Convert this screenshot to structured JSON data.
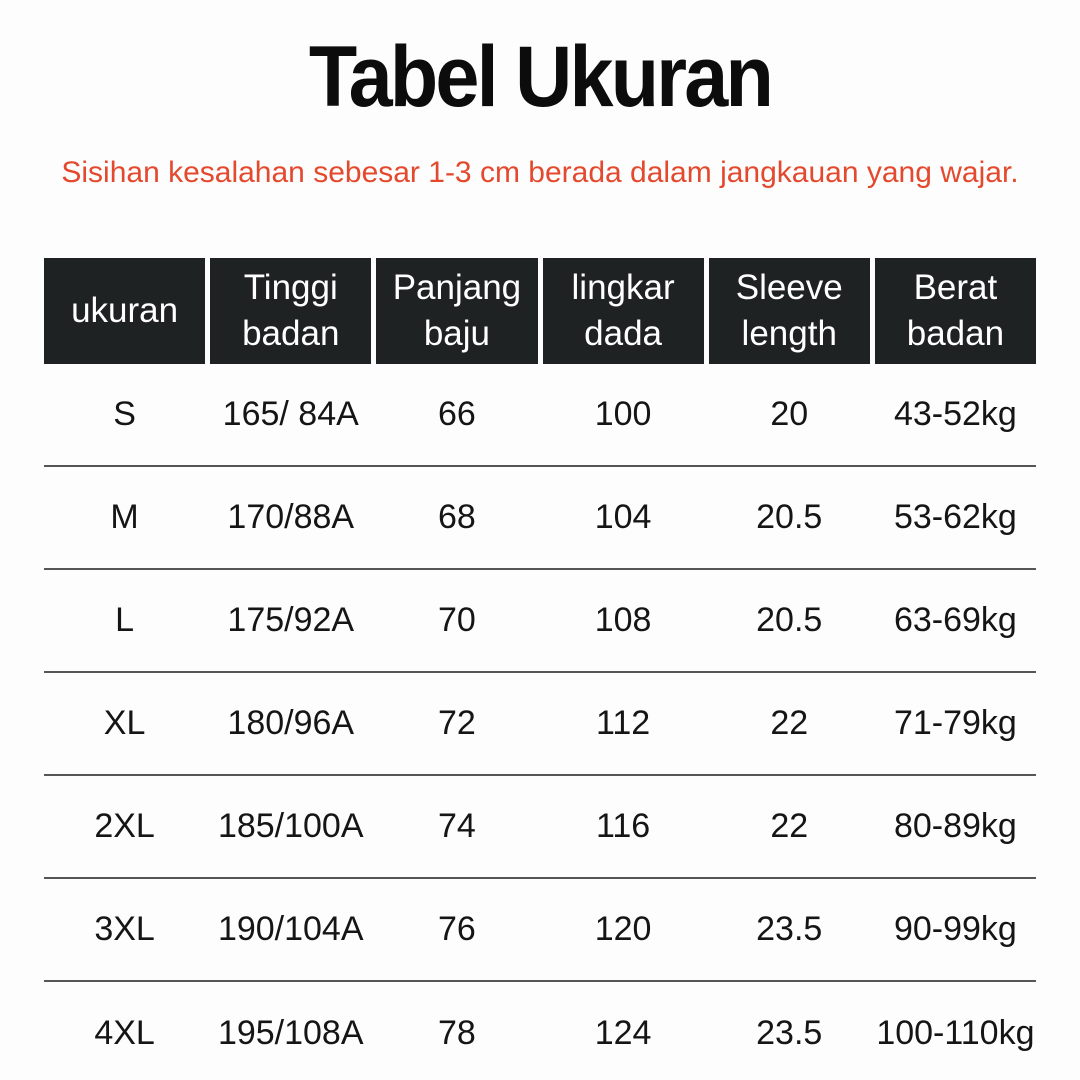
{
  "page": {
    "title": "Tabel Ukuran",
    "subtitle": "Sisihan kesalahan sebesar 1-3 cm berada dalam jangkauan yang wajar."
  },
  "colors": {
    "background": "#fdfdfd",
    "title_text": "#0c0c0c",
    "subtitle": "#e4492e",
    "header_bg": "#1f2223",
    "header_text": "#ffffff",
    "row_divider": "#565656",
    "body_text": "#151515"
  },
  "table": {
    "columns": [
      "ukuran",
      "Tinggi badan",
      "Panjang baju",
      "lingkar dada",
      "Sleeve length",
      "Berat badan"
    ],
    "rows": [
      [
        "S",
        "165/ 84A",
        "66",
        "100",
        "20",
        "43-52kg"
      ],
      [
        "M",
        "170/88A",
        "68",
        "104",
        "20.5",
        "53-62kg"
      ],
      [
        "L",
        "175/92A",
        "70",
        "108",
        "20.5",
        "63-69kg"
      ],
      [
        "XL",
        "180/96A",
        "72",
        "112",
        "22",
        "71-79kg"
      ],
      [
        "2XL",
        "185/100A",
        "74",
        "116",
        "22",
        "80-89kg"
      ],
      [
        "3XL",
        "190/104A",
        "76",
        "120",
        "23.5",
        "90-99kg"
      ],
      [
        "4XL",
        "195/108A",
        "78",
        "124",
        "23.5",
        "100-110kg"
      ]
    ]
  },
  "chart_data": {
    "type": "table",
    "title": "Tabel Ukuran",
    "subtitle": "Sisihan kesalahan sebesar 1-3 cm berada dalam jangkauan yang wajar.",
    "columns": [
      "ukuran",
      "Tinggi badan",
      "Panjang baju",
      "lingkar dada",
      "Sleeve length",
      "Berat badan"
    ],
    "rows": [
      [
        "S",
        "165/ 84A",
        "66",
        "100",
        "20",
        "43-52kg"
      ],
      [
        "M",
        "170/88A",
        "68",
        "104",
        "20.5",
        "53-62kg"
      ],
      [
        "L",
        "175/92A",
        "70",
        "108",
        "20.5",
        "63-69kg"
      ],
      [
        "XL",
        "180/96A",
        "72",
        "112",
        "22",
        "71-79kg"
      ],
      [
        "2XL",
        "185/100A",
        "74",
        "116",
        "22",
        "80-89kg"
      ],
      [
        "3XL",
        "190/104A",
        "76",
        "120",
        "23.5",
        "90-99kg"
      ],
      [
        "4XL",
        "195/108A",
        "78",
        "124",
        "23.5",
        "100-110kg"
      ]
    ],
    "layout": {
      "header_style": "black background, white text, 6 equal columns with thin white gaps",
      "row_separators": "thin dark gray horizontal rules between rows, none after last row",
      "alignment": "all cells center-aligned"
    }
  }
}
